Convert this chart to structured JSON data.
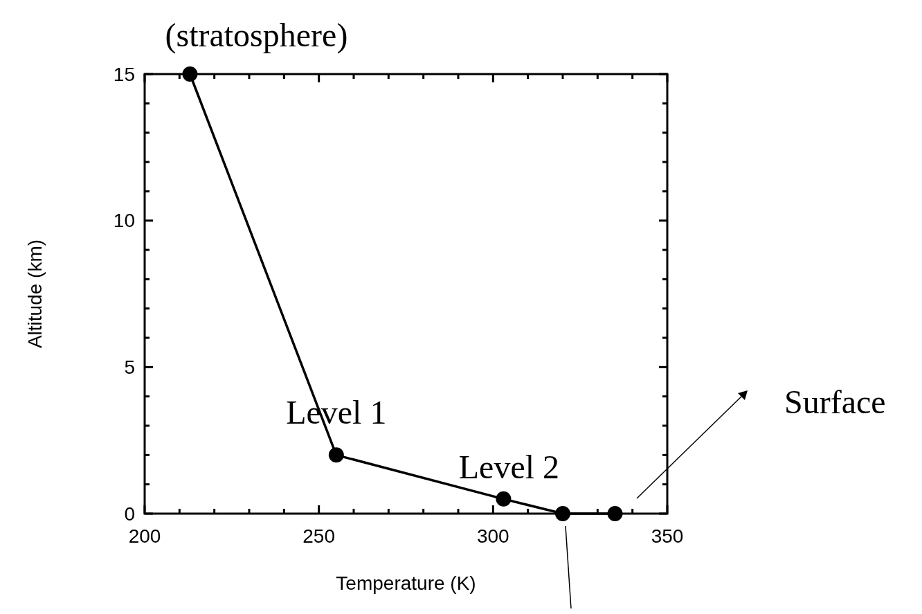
{
  "chart_data": {
    "type": "line",
    "xlabel": "Temperature (K)",
    "ylabel": "Altitude (km)",
    "x": [
      213,
      255,
      303,
      320,
      335
    ],
    "series": [
      {
        "color": "#000000",
        "values": [
          15,
          2,
          0.5,
          0,
          0
        ]
      }
    ],
    "marker": "circle",
    "line_style": "solid",
    "grid": false,
    "xlim": [
      200,
      350
    ],
    "ylim": [
      0,
      15
    ],
    "xticks": [
      200,
      {
        "value": 210,
        "label": null
      },
      {
        "value": 220,
        "label": null
      },
      {
        "value": 230,
        "label": null
      },
      {
        "value": 240,
        "label": null
      },
      250,
      {
        "value": 260,
        "label": null
      },
      {
        "value": 270,
        "label": null
      },
      {
        "value": 280,
        "label": null
      },
      {
        "value": 290,
        "label": null
      },
      300,
      {
        "value": 310,
        "label": null
      },
      {
        "value": 320,
        "label": null
      },
      {
        "value": 330,
        "label": null
      },
      {
        "value": 340,
        "label": null
      },
      350
    ],
    "yticks": [
      0,
      {
        "value": 1,
        "label": null
      },
      {
        "value": 2,
        "label": null
      },
      {
        "value": 3,
        "label": null
      },
      {
        "value": 4,
        "label": null
      },
      5,
      {
        "value": 6,
        "label": null
      },
      {
        "value": 7,
        "label": null
      },
      {
        "value": 8,
        "label": null
      },
      {
        "value": 9,
        "label": null
      },
      10,
      {
        "value": 11,
        "label": null
      },
      {
        "value": 12,
        "label": null
      },
      {
        "value": 13,
        "label": null
      },
      {
        "value": 14,
        "label": null
      },
      15
    ],
    "annotations": [
      {
        "text": "(stratosphere)",
        "x": 213,
        "y": 15
      },
      {
        "text": "Level 1",
        "x": 255,
        "y": 2
      },
      {
        "text": "Level 2",
        "x": 303,
        "y": 0.5
      },
      "Surface"
    ]
  }
}
